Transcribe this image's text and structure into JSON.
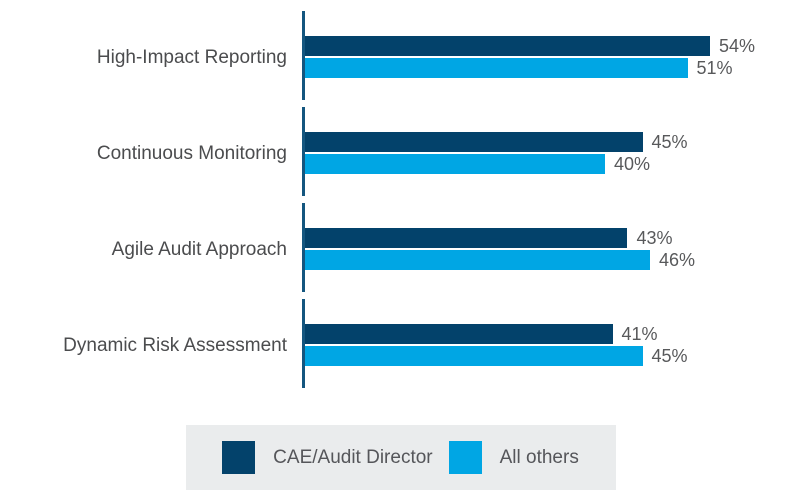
{
  "chart_data": {
    "type": "bar",
    "orientation": "horizontal",
    "categories": [
      "High-Impact Reporting",
      "Continuous Monitoring",
      "Agile Audit Approach",
      "Dynamic Risk Assessment"
    ],
    "series": [
      {
        "name": "CAE/Audit Director",
        "color": "#03426b",
        "values": [
          54,
          45,
          43,
          41
        ]
      },
      {
        "name": "All others",
        "color": "#00a6e4",
        "values": [
          51,
          40,
          46,
          45
        ]
      }
    ],
    "value_labels": [
      [
        "54%",
        "51%"
      ],
      [
        "45%",
        "40%"
      ],
      [
        "43%",
        "46%"
      ],
      [
        "41%",
        "45%"
      ]
    ],
    "value_suffix": "%",
    "xlim": [
      0,
      60
    ],
    "grid": false,
    "legend_position": "bottom",
    "colors": {
      "axis_line": "#14567f",
      "category_label": "#4b4c4e",
      "value_label": "#58595b",
      "legend_background": "#eaeced",
      "background": "#ffffff"
    }
  }
}
